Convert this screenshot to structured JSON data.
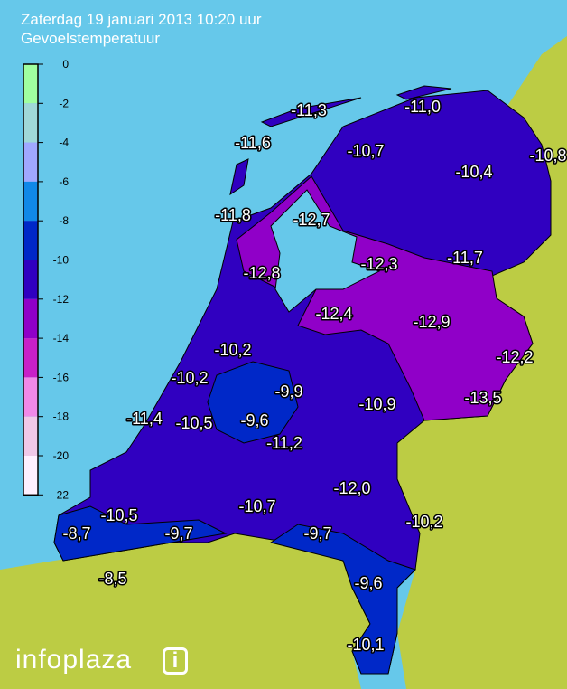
{
  "header": {
    "title": "Zaterdag 19 januari 2013 10:20 uur",
    "subtitle": "Gevoelstemperatuur"
  },
  "legend": {
    "ticks": [
      "0",
      "-2",
      "-4",
      "-6",
      "-8",
      "-10",
      "-12",
      "-14",
      "-16",
      "-18",
      "-20",
      "-22"
    ],
    "colors": [
      "#a0ffa0",
      "#a0d8d8",
      "#a0a8ff",
      "#1088e8",
      "#0028c8",
      "#3000c0",
      "#9000c8",
      "#c820c8",
      "#f088e8",
      "#f0c8e8",
      "#fff0ff"
    ]
  },
  "colors": {
    "sea": "#66c8ea",
    "foreign_land": "#bccc44",
    "main_zone": "#3000c0",
    "cold_zone": "#9000c8",
    "warm_zone": "#0028c8"
  },
  "stations": [
    "-11,3",
    "-11,0",
    "-11,6",
    "-10,7",
    "-10,8",
    "-10,4",
    "-11,8",
    "-12,7",
    "-12,3",
    "-11,7",
    "-12,8",
    "-12,4",
    "-12,9",
    "-10,2",
    "-12,2",
    "-10,2",
    "-9,9",
    "-10,9",
    "-13,5",
    "-11,4",
    "-10,5",
    "-9,6",
    "-11,2",
    "-12,0",
    "-10,5",
    "-10,7",
    "-10,2",
    "-8,7",
    "-9,7",
    "-9,7",
    "-9,6",
    "-8,5",
    "-10,1"
  ],
  "logo": {
    "text": "infoplaza",
    "mark": "i"
  }
}
